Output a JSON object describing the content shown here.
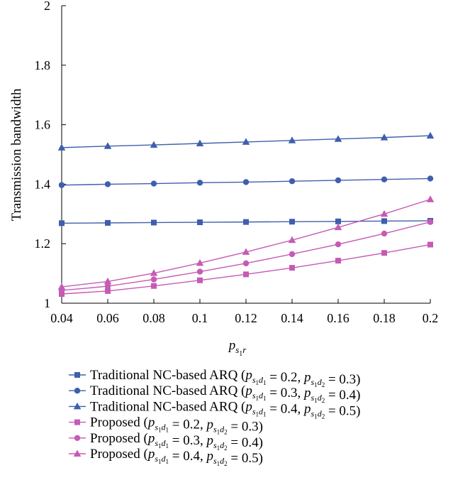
{
  "colors": {
    "traditional": "#3f5fad",
    "proposed": "#c55bb4"
  },
  "chart_data": {
    "type": "line",
    "xlabel": {
      "base": "p",
      "sub1": "s",
      "sub2": "1",
      "sub3": "r"
    },
    "ylabel": "Transmission bandwidth",
    "xlim": [
      0.04,
      0.2
    ],
    "ylim": [
      1,
      2
    ],
    "x": [
      0.04,
      0.06,
      0.08,
      0.1,
      0.12,
      0.14,
      0.16,
      0.18,
      0.2
    ],
    "xtick_labels": [
      "0.04",
      "0.06",
      "0.08",
      "0.1",
      "0.12",
      "0.14",
      "0.16",
      "0.18",
      "0.2"
    ],
    "yticks": [
      1,
      1.2,
      1.4,
      1.6,
      1.8,
      2
    ],
    "ytick_labels": [
      "1",
      "1.2",
      "1.4",
      "1.6",
      "1.8",
      "2"
    ],
    "grid": false,
    "legend_position": "bottom",
    "series": [
      {
        "name": "Traditional NC-based ARQ",
        "params": [
          "0.2",
          "0.3"
        ],
        "family": "traditional",
        "marker": "square",
        "values": [
          1.269,
          1.27,
          1.271,
          1.272,
          1.273,
          1.274,
          1.275,
          1.276,
          1.277
        ]
      },
      {
        "name": "Traditional NC-based ARQ",
        "params": [
          "0.3",
          "0.4"
        ],
        "family": "traditional",
        "marker": "circle",
        "values": [
          1.397,
          1.4,
          1.402,
          1.405,
          1.407,
          1.41,
          1.413,
          1.416,
          1.419
        ]
      },
      {
        "name": "Traditional NC-based ARQ",
        "params": [
          "0.4",
          "0.5"
        ],
        "family": "traditional",
        "marker": "triangle",
        "values": [
          1.523,
          1.528,
          1.532,
          1.537,
          1.542,
          1.547,
          1.552,
          1.557,
          1.563
        ]
      },
      {
        "name": "Proposed",
        "params": [
          "0.2",
          "0.3"
        ],
        "family": "proposed",
        "marker": "square",
        "values": [
          1.031,
          1.041,
          1.058,
          1.077,
          1.097,
          1.119,
          1.143,
          1.169,
          1.197
        ]
      },
      {
        "name": "Proposed",
        "params": [
          "0.3",
          "0.4"
        ],
        "family": "proposed",
        "marker": "circle",
        "values": [
          1.043,
          1.057,
          1.08,
          1.106,
          1.134,
          1.165,
          1.198,
          1.234,
          1.273
        ]
      },
      {
        "name": "Proposed",
        "params": [
          "0.4",
          "0.5"
        ],
        "family": "proposed",
        "marker": "triangle",
        "values": [
          1.055,
          1.073,
          1.101,
          1.135,
          1.172,
          1.212,
          1.255,
          1.3,
          1.349
        ]
      }
    ],
    "legend_text": {
      "p": "p",
      "s": "s",
      "one": "1",
      "d": "d",
      "two": "2",
      "eq": "=",
      "comma": ",",
      "open": "(",
      "close": ")"
    }
  }
}
